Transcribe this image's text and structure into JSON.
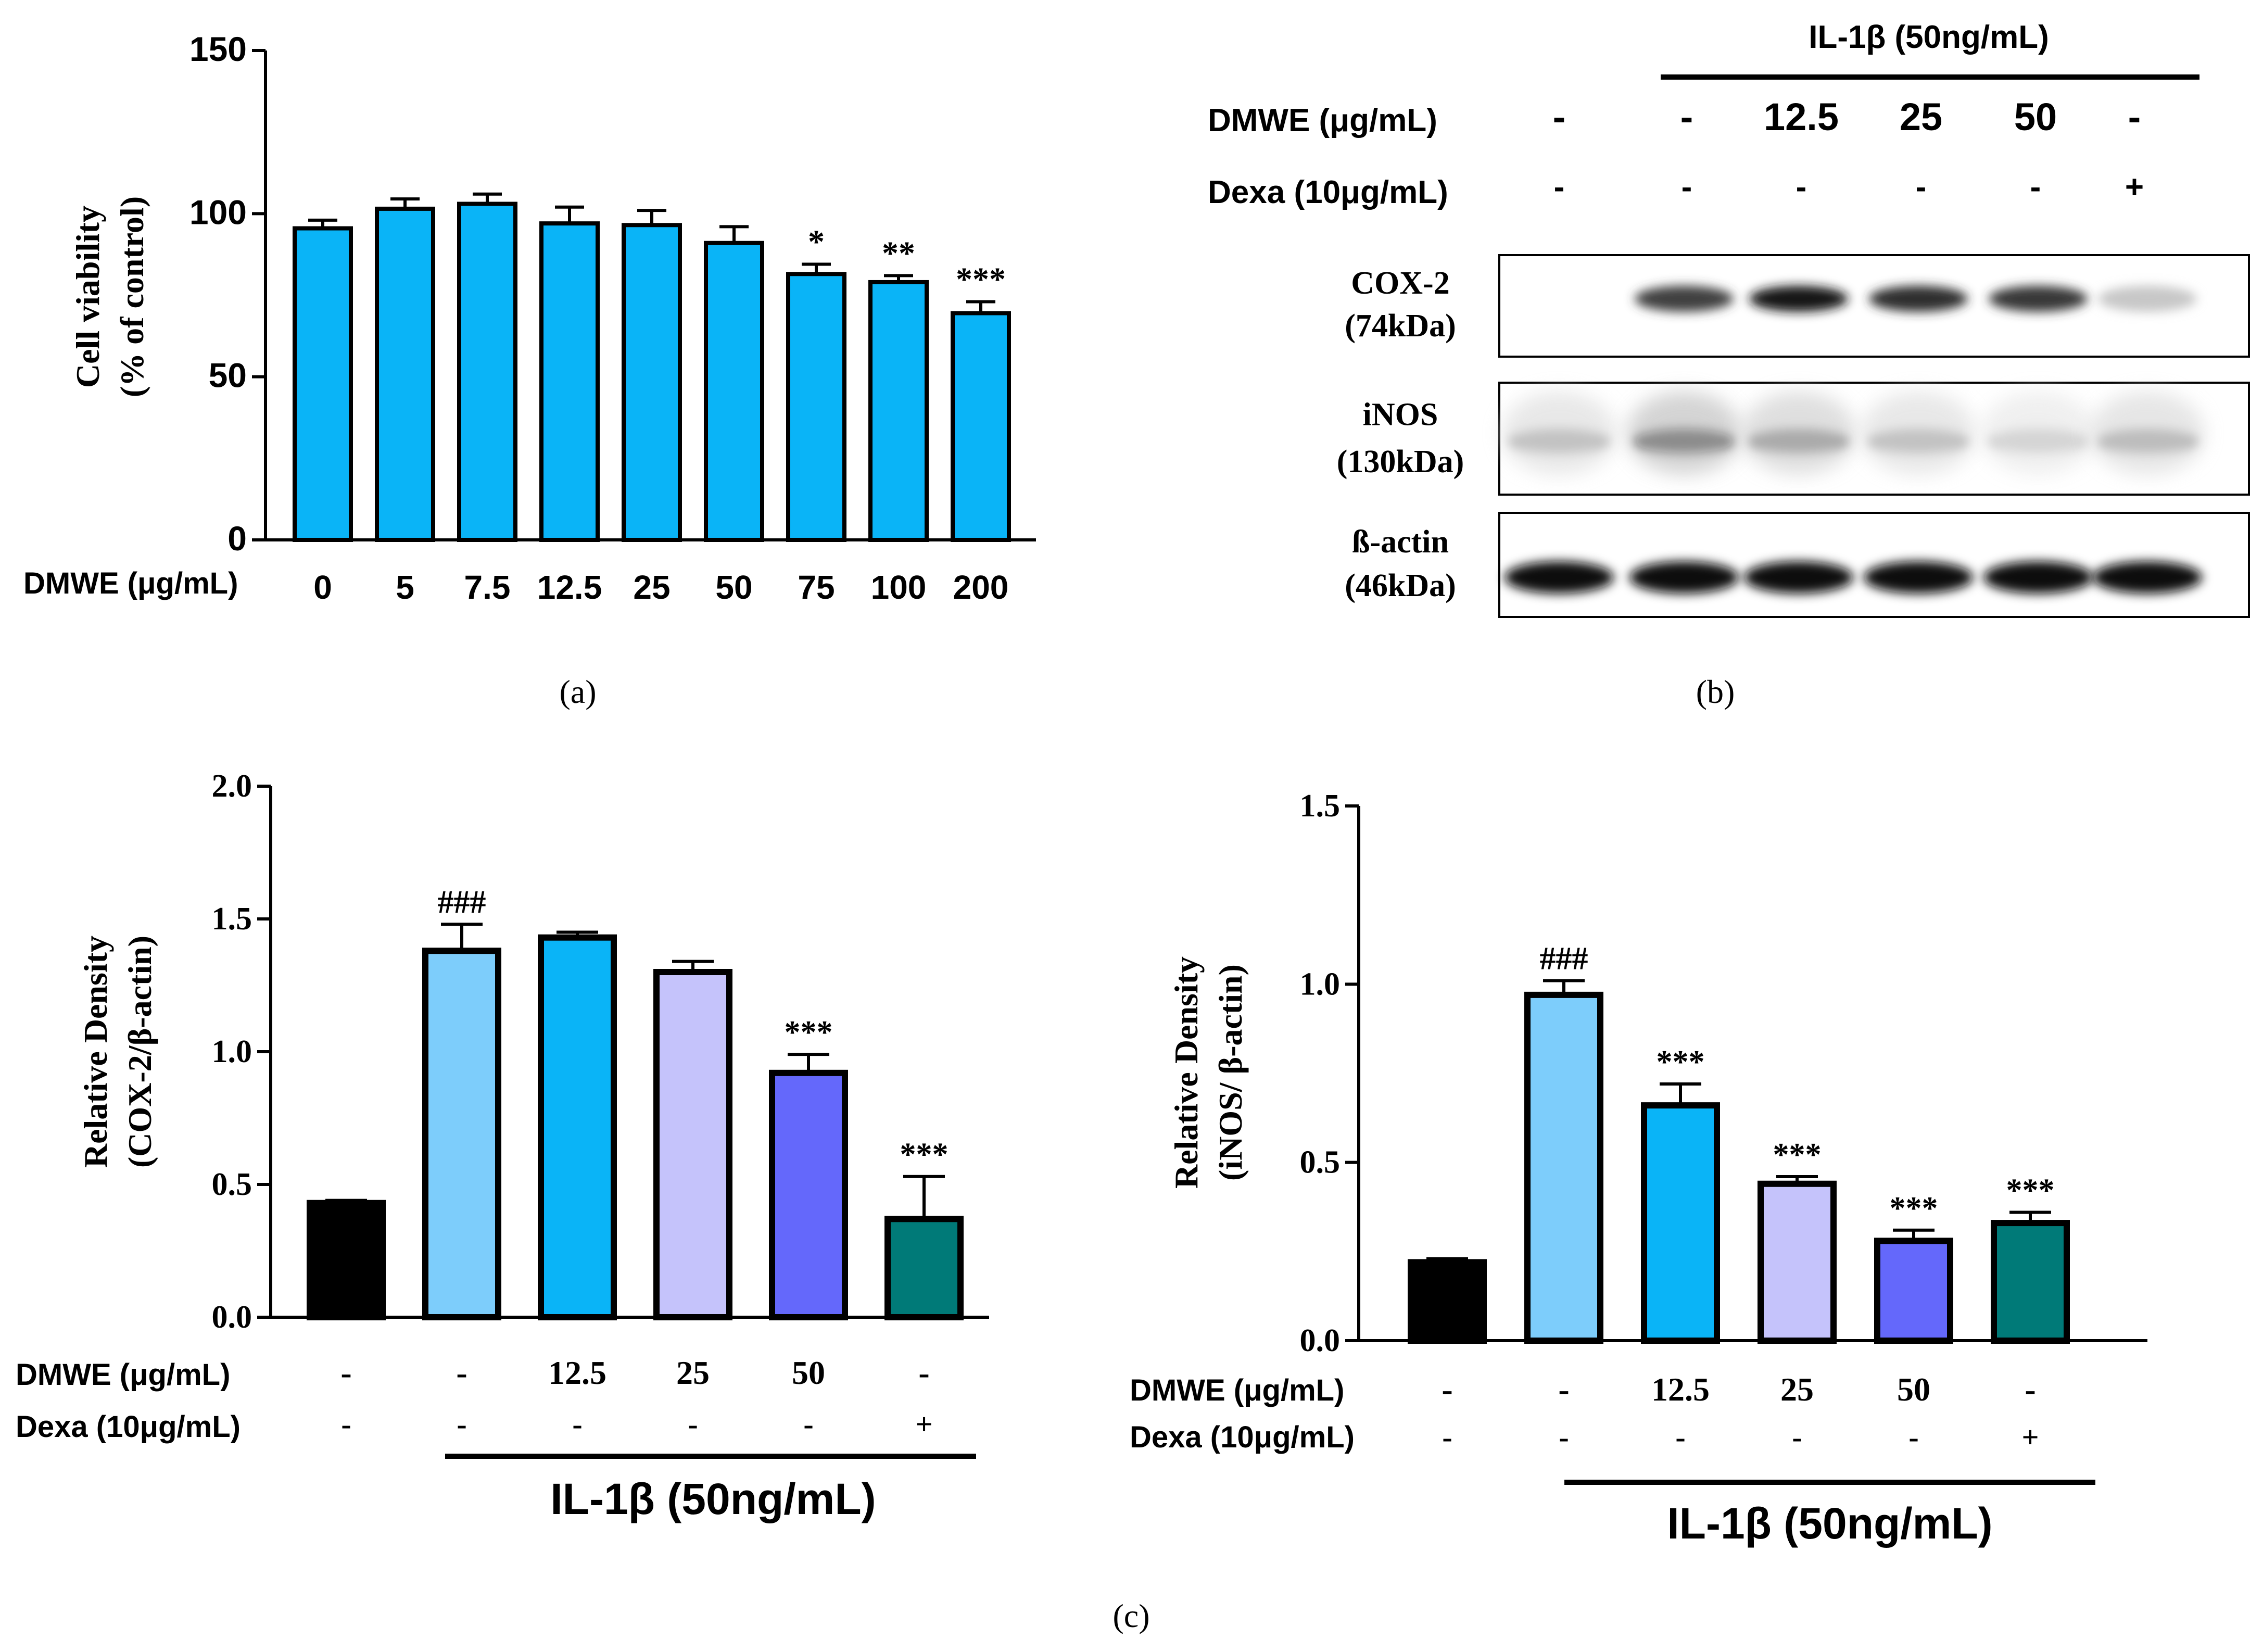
{
  "colors": {
    "bar_a": "#0ab4f7",
    "bar_control": "#000000",
    "bar_il1b": "#7dcdfb",
    "bar_12_5": "#0ab4f7",
    "bar_25": "#c5c3fb",
    "bar_50": "#6468fb",
    "bar_dexa": "#007a78"
  },
  "panel_a": {
    "caption": "(a)",
    "ylabel_line1": "Cell viability",
    "ylabel_line2": "(% of control)",
    "row_label": "DMWE (μg/mL)",
    "chart_data": {
      "type": "bar",
      "categories": [
        "0",
        "5",
        "7.5",
        "12.5",
        "25",
        "50",
        "75",
        "100",
        "200"
      ],
      "values": [
        95.5,
        101.5,
        103,
        97,
        96.5,
        91,
        81.5,
        79,
        69.5
      ],
      "errors": [
        2.5,
        3,
        3,
        5,
        4.5,
        5,
        3,
        2,
        3.5
      ],
      "significance": [
        "",
        "",
        "",
        "",
        "",
        "",
        "*",
        "**",
        "***"
      ],
      "ylim": [
        0,
        150
      ],
      "yticks": [
        "0",
        "50",
        "100",
        "150"
      ],
      "ylabel": "Cell viability (% of control)",
      "xlabel": "DMWE (μg/mL)"
    }
  },
  "panel_b": {
    "caption": "(b)",
    "il1b_label": "IL-1β (50ng/mL)",
    "dmwe_label": "DMWE (μg/mL)",
    "dexa_label": "Dexa (10μg/mL)",
    "dmwe_values": [
      "-",
      "-",
      "12.5",
      "25",
      "50",
      "-"
    ],
    "dexa_values": [
      "-",
      "-",
      "-",
      "-",
      "-",
      "+"
    ],
    "lanes": [
      {
        "name": "COX-2",
        "size": "(74kDa)",
        "intensity": [
          0,
          0.75,
          0.9,
          0.82,
          0.78,
          0.22
        ]
      },
      {
        "name": "iNOS",
        "size": "(130kDa)",
        "intensity": [
          0.5,
          0.95,
          0.7,
          0.5,
          0.35,
          0.55
        ]
      },
      {
        "name": "ß-actin",
        "size": "(46kDa)",
        "intensity": [
          0.95,
          0.95,
          0.95,
          0.95,
          0.95,
          0.95
        ]
      }
    ]
  },
  "panel_c": {
    "caption": "(c)",
    "dmwe_label": "DMWE (μg/mL)",
    "dexa_label": "Dexa (10μg/mL)",
    "il1b_label": "IL-1β (50ng/mL)",
    "dmwe_values": [
      "-",
      "-",
      "12.5",
      "25",
      "50",
      "-"
    ],
    "dexa_values": [
      "-",
      "-",
      "-",
      "-",
      "-",
      "+"
    ],
    "chart_data": [
      {
        "type": "bar",
        "ylabel_line1": "Relative Density",
        "ylabel_line2": "(COX-2/β-actin)",
        "values": [
          0.43,
          1.38,
          1.43,
          1.3,
          0.92,
          0.37
        ],
        "errors": [
          0.01,
          0.1,
          0.02,
          0.04,
          0.07,
          0.16
        ],
        "significance": [
          "",
          "###",
          "",
          "",
          "***",
          "***"
        ],
        "ylim": [
          0,
          2.0
        ],
        "yticks": [
          "0.0",
          "0.5",
          "1.0",
          "1.5",
          "2.0"
        ]
      },
      {
        "type": "bar",
        "ylabel_line1": "Relative Density",
        "ylabel_line2": "(iNOS/ β-actin)",
        "values": [
          0.22,
          0.97,
          0.66,
          0.44,
          0.28,
          0.33
        ],
        "errors": [
          0.01,
          0.04,
          0.06,
          0.02,
          0.03,
          0.03
        ],
        "significance": [
          "",
          "###",
          "***",
          "***",
          "***",
          "***"
        ],
        "ylim": [
          0,
          1.5
        ],
        "yticks": [
          "0.0",
          "0.5",
          "1.0",
          "1.5"
        ]
      }
    ]
  }
}
